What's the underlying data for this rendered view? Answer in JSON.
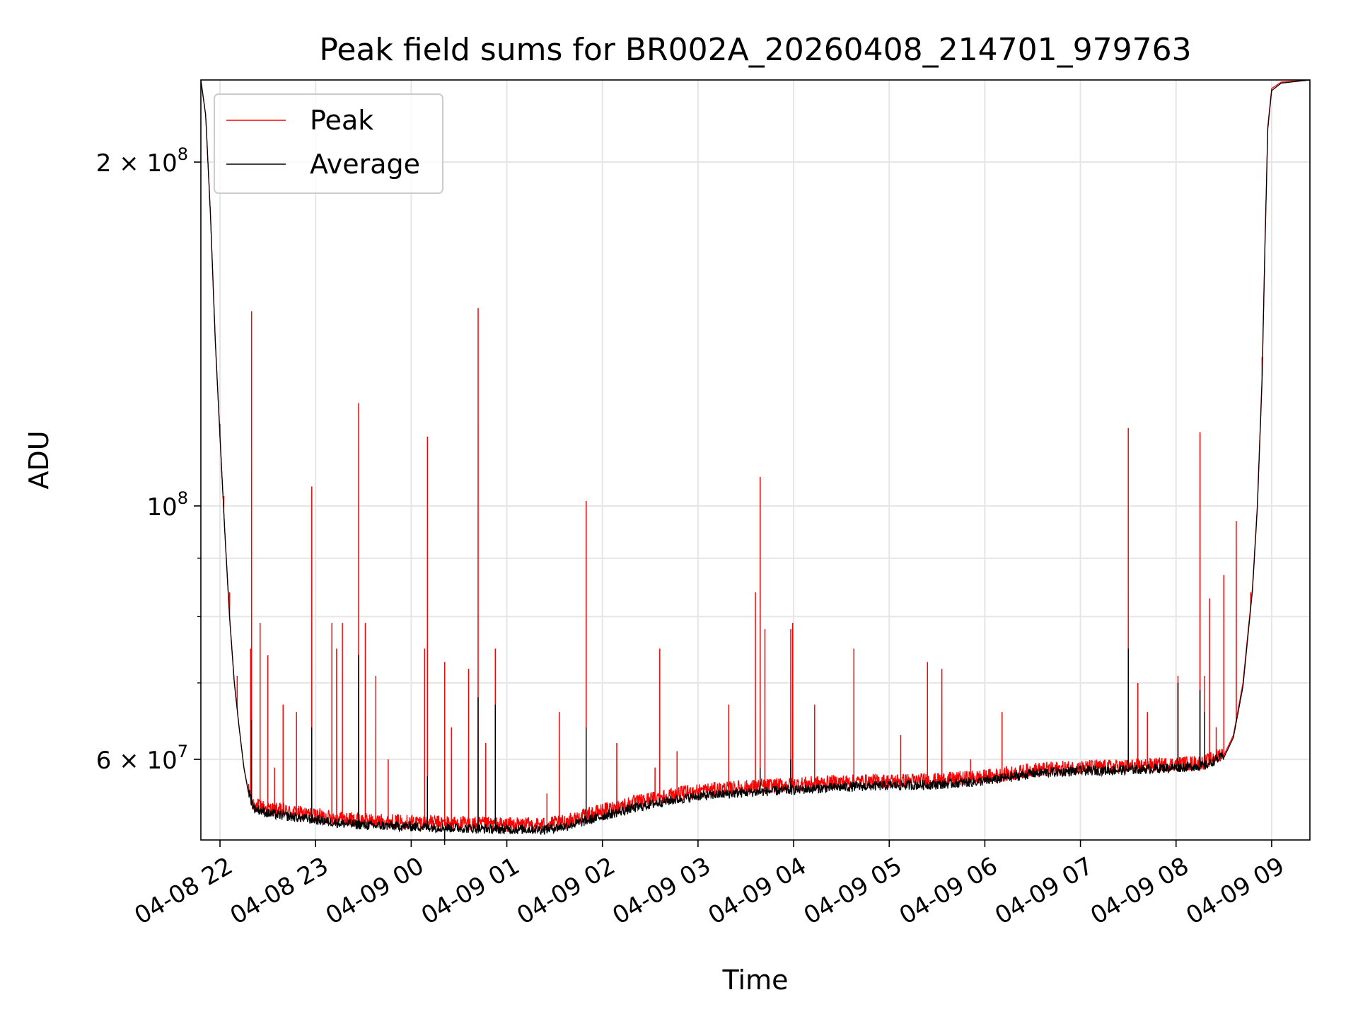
{
  "chart_data": {
    "type": "line",
    "title": "Peak field sums for BR002A_20260408_214701_979763",
    "xlabel": "Time",
    "ylabel": "ADU",
    "yscale": "log",
    "ylim": [
      51000000,
      236000000
    ],
    "xlim": [
      21.8,
      33.4
    ],
    "grid": true,
    "legend_position": "top-left",
    "x_ticks": [
      {
        "value": 22,
        "label": "04-08 22"
      },
      {
        "value": 23,
        "label": "04-08 23"
      },
      {
        "value": 24,
        "label": "04-09 00"
      },
      {
        "value": 25,
        "label": "04-09 01"
      },
      {
        "value": 26,
        "label": "04-09 02"
      },
      {
        "value": 27,
        "label": "04-09 03"
      },
      {
        "value": 28,
        "label": "04-09 04"
      },
      {
        "value": 29,
        "label": "04-09 05"
      },
      {
        "value": 30,
        "label": "04-09 06"
      },
      {
        "value": 31,
        "label": "04-09 07"
      },
      {
        "value": 32,
        "label": "04-09 08"
      },
      {
        "value": 33,
        "label": "04-09 09"
      }
    ],
    "y_major_ticks": [
      {
        "value": 60000000,
        "mantissa": "6",
        "exponent": "7"
      },
      {
        "value": 100000000,
        "mantissa": "",
        "exponent": "8"
      },
      {
        "value": 200000000,
        "mantissa": "2",
        "exponent": "8"
      }
    ],
    "y_minor_ticks": [
      70000000,
      80000000,
      90000000
    ],
    "base_label": "10",
    "times_symbol": "×",
    "series": [
      {
        "name": "Peak",
        "color": "#ff0000",
        "baseline": [
          [
            21.8,
            236000000
          ],
          [
            21.85,
            220000000
          ],
          [
            21.9,
            180000000
          ],
          [
            21.95,
            140000000
          ],
          [
            22.0,
            115000000
          ],
          [
            22.05,
            95000000
          ],
          [
            22.1,
            80000000
          ],
          [
            22.15,
            70000000
          ],
          [
            22.2,
            64000000
          ],
          [
            22.25,
            59000000
          ],
          [
            22.3,
            56000000
          ],
          [
            22.35,
            54500000
          ],
          [
            22.5,
            54000000
          ],
          [
            22.7,
            53700000
          ],
          [
            23.0,
            53300000
          ],
          [
            23.3,
            52900000
          ],
          [
            23.6,
            52700000
          ],
          [
            24.0,
            52600000
          ],
          [
            24.3,
            52500000
          ],
          [
            24.6,
            52400000
          ],
          [
            25.0,
            52300000
          ],
          [
            25.4,
            52300000
          ],
          [
            25.6,
            52600000
          ],
          [
            25.8,
            53200000
          ],
          [
            26.0,
            53800000
          ],
          [
            26.3,
            54600000
          ],
          [
            26.6,
            55300000
          ],
          [
            27.0,
            56000000
          ],
          [
            27.5,
            56400000
          ],
          [
            28.0,
            56700000
          ],
          [
            28.5,
            57000000
          ],
          [
            29.0,
            57100000
          ],
          [
            29.5,
            57200000
          ],
          [
            30.0,
            57600000
          ],
          [
            30.3,
            58000000
          ],
          [
            30.5,
            58400000
          ],
          [
            31.0,
            58700000
          ],
          [
            31.5,
            58800000
          ],
          [
            32.0,
            59100000
          ],
          [
            32.3,
            59300000
          ],
          [
            32.5,
            60500000
          ],
          [
            32.6,
            63000000
          ],
          [
            32.7,
            70000000
          ],
          [
            32.8,
            85000000
          ],
          [
            32.85,
            100000000
          ],
          [
            32.9,
            130000000
          ],
          [
            32.93,
            170000000
          ],
          [
            32.96,
            215000000
          ],
          [
            33.0,
            232000000
          ],
          [
            33.1,
            235000000
          ],
          [
            33.4,
            236000000
          ]
        ],
        "spikes": [
          [
            22.0,
            118000000
          ],
          [
            22.04,
            102000000
          ],
          [
            22.1,
            84000000
          ],
          [
            22.18,
            71000000
          ],
          [
            22.32,
            75000000
          ],
          [
            22.33,
            148000000
          ],
          [
            22.42,
            79000000
          ],
          [
            22.5,
            74000000
          ],
          [
            22.57,
            59000000
          ],
          [
            22.66,
            67000000
          ],
          [
            22.8,
            66000000
          ],
          [
            22.96,
            104000000
          ],
          [
            23.17,
            79000000
          ],
          [
            23.22,
            75000000
          ],
          [
            23.28,
            79000000
          ],
          [
            23.45,
            123000000
          ],
          [
            23.52,
            79000000
          ],
          [
            23.63,
            71000000
          ],
          [
            23.76,
            60000000
          ],
          [
            24.14,
            75000000
          ],
          [
            24.17,
            115000000
          ],
          [
            24.35,
            73000000
          ],
          [
            24.42,
            64000000
          ],
          [
            24.6,
            72000000
          ],
          [
            24.7,
            149000000
          ],
          [
            24.78,
            62000000
          ],
          [
            24.88,
            75000000
          ],
          [
            25.42,
            56000000
          ],
          [
            25.55,
            66000000
          ],
          [
            25.83,
            101000000
          ],
          [
            26.15,
            62000000
          ],
          [
            26.55,
            59000000
          ],
          [
            26.6,
            75000000
          ],
          [
            26.78,
            61000000
          ],
          [
            27.32,
            67000000
          ],
          [
            27.6,
            84000000
          ],
          [
            27.65,
            106000000
          ],
          [
            27.7,
            78000000
          ],
          [
            27.97,
            78000000
          ],
          [
            27.99,
            79000000
          ],
          [
            28.22,
            67000000
          ],
          [
            28.63,
            75000000
          ],
          [
            29.12,
            63000000
          ],
          [
            29.4,
            73000000
          ],
          [
            29.55,
            72000000
          ],
          [
            29.85,
            60000000
          ],
          [
            30.18,
            66000000
          ],
          [
            31.5,
            117000000
          ],
          [
            31.6,
            70000000
          ],
          [
            31.7,
            66000000
          ],
          [
            32.02,
            71000000
          ],
          [
            32.25,
            116000000
          ],
          [
            32.3,
            71000000
          ],
          [
            32.35,
            83000000
          ],
          [
            32.42,
            64000000
          ],
          [
            32.5,
            87000000
          ],
          [
            32.63,
            97000000
          ],
          [
            32.78,
            84000000
          ],
          [
            32.9,
            135000000
          ]
        ]
      },
      {
        "name": "Average",
        "color": "#000000",
        "baseline": [
          [
            21.8,
            236000000
          ],
          [
            21.85,
            220000000
          ],
          [
            21.9,
            180000000
          ],
          [
            21.95,
            140000000
          ],
          [
            22.0,
            115000000
          ],
          [
            22.05,
            95000000
          ],
          [
            22.1,
            80000000
          ],
          [
            22.15,
            70000000
          ],
          [
            22.2,
            64000000
          ],
          [
            22.25,
            59000000
          ],
          [
            22.3,
            56000000
          ],
          [
            22.35,
            54200000
          ],
          [
            22.5,
            53600000
          ],
          [
            22.7,
            53300000
          ],
          [
            23.0,
            52900000
          ],
          [
            23.3,
            52500000
          ],
          [
            23.6,
            52300000
          ],
          [
            24.0,
            52200000
          ],
          [
            24.3,
            52100000
          ],
          [
            24.6,
            52000000
          ],
          [
            25.0,
            51900000
          ],
          [
            25.4,
            51900000
          ],
          [
            25.6,
            52200000
          ],
          [
            25.8,
            52700000
          ],
          [
            26.0,
            53300000
          ],
          [
            26.3,
            54100000
          ],
          [
            26.6,
            54800000
          ],
          [
            27.0,
            55500000
          ],
          [
            27.5,
            55900000
          ],
          [
            28.0,
            56200000
          ],
          [
            28.5,
            56500000
          ],
          [
            29.0,
            56700000
          ],
          [
            29.5,
            56800000
          ],
          [
            30.0,
            57200000
          ],
          [
            30.3,
            57700000
          ],
          [
            30.5,
            58100000
          ],
          [
            31.0,
            58400000
          ],
          [
            31.5,
            58500000
          ],
          [
            32.0,
            58800000
          ],
          [
            32.3,
            59000000
          ],
          [
            32.5,
            60200000
          ],
          [
            32.6,
            62700000
          ],
          [
            32.7,
            69500000
          ],
          [
            32.8,
            84500000
          ],
          [
            32.85,
            99500000
          ],
          [
            32.9,
            129000000
          ],
          [
            32.93,
            169000000
          ],
          [
            32.96,
            214000000
          ],
          [
            33.0,
            231000000
          ],
          [
            33.1,
            234500000
          ],
          [
            33.4,
            236000000
          ]
        ],
        "spikes": [
          [
            22.33,
            65000000
          ],
          [
            22.96,
            64000000
          ],
          [
            23.45,
            74000000
          ],
          [
            24.17,
            58000000
          ],
          [
            24.35,
            50500000
          ],
          [
            24.7,
            68000000
          ],
          [
            24.88,
            67000000
          ],
          [
            25.83,
            64000000
          ],
          [
            27.65,
            59000000
          ],
          [
            27.97,
            60000000
          ],
          [
            31.5,
            75000000
          ],
          [
            32.02,
            70000000
          ],
          [
            32.25,
            69000000
          ],
          [
            32.3,
            66000000
          ]
        ]
      }
    ]
  }
}
